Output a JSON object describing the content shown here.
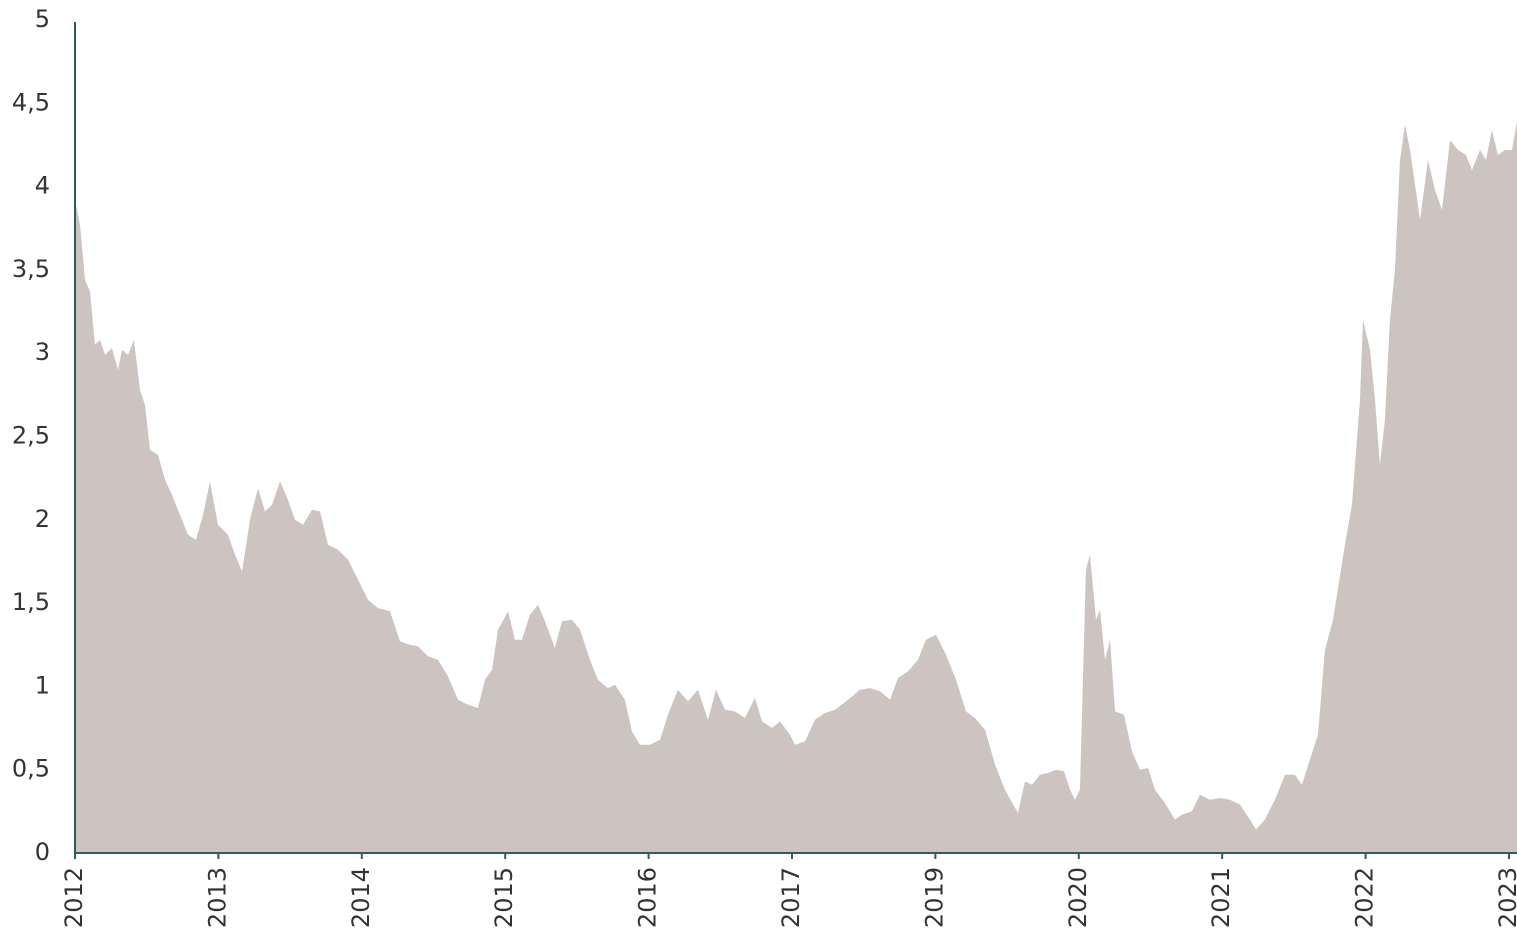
{
  "chart_data": {
    "type": "area",
    "color": "#cdc3c0",
    "axis_color": "#2f5b5e",
    "x": [
      0,
      0.035,
      0.07,
      0.105,
      0.139,
      0.174,
      0.209,
      0.258,
      0.3,
      0.328,
      0.37,
      0.411,
      0.453,
      0.488,
      0.523,
      0.579,
      0.628,
      0.676,
      0.732,
      0.788,
      0.844,
      0.893,
      0.941,
      0.997,
      1.067,
      1.116,
      1.165,
      1.22,
      1.276,
      1.325,
      1.374,
      1.43,
      1.485,
      1.534,
      1.59,
      1.653,
      1.709,
      1.764,
      1.834,
      1.904,
      1.974,
      2.043,
      2.113,
      2.197,
      2.266,
      2.336,
      2.392,
      2.462,
      2.531,
      2.601,
      2.671,
      2.741,
      2.81,
      2.859,
      2.908,
      2.95,
      3.02,
      3.068,
      3.117,
      3.173,
      3.229,
      3.278,
      3.347,
      3.396,
      3.466,
      3.522,
      3.591,
      3.647,
      3.717,
      3.766,
      3.835,
      3.884,
      3.94,
      4.01,
      4.08,
      4.135,
      4.205,
      4.275,
      4.344,
      4.414,
      4.47,
      4.533,
      4.603,
      4.672,
      4.742,
      4.791,
      4.861,
      4.916,
      4.986,
      5.021,
      5.091,
      5.16,
      5.23,
      5.3,
      5.391,
      5.474,
      5.544,
      5.614,
      5.684,
      5.739,
      5.809,
      5.879,
      5.934,
      6.004,
      6.074,
      6.144,
      6.213,
      6.276,
      6.346,
      6.416,
      6.485,
      6.576,
      6.625,
      6.674,
      6.729,
      6.785,
      6.841,
      6.897,
      6.939,
      6.974,
      7.008,
      7.05,
      7.078,
      7.12,
      7.148,
      7.183,
      7.218,
      7.253,
      7.315,
      7.371,
      7.427,
      7.483,
      7.531,
      7.601,
      7.671,
      7.72,
      7.789,
      7.845,
      7.915,
      7.985,
      8.054,
      8.124,
      8.194,
      8.236,
      8.298,
      8.368,
      8.438,
      8.508,
      8.556,
      8.612,
      8.668,
      8.717,
      8.773,
      8.856,
      8.905,
      8.961,
      8.982,
      9.031,
      9.066,
      9.1,
      9.135,
      9.17,
      9.205,
      9.24,
      9.275,
      9.31,
      9.38,
      9.435,
      9.484,
      9.533,
      9.589,
      9.644,
      9.7,
      9.742,
      9.798,
      9.84,
      9.881,
      9.923,
      9.972,
      10.021,
      10.056
    ],
    "values": [
      3.92,
      3.77,
      3.44,
      3.37,
      3.05,
      3.08,
      2.99,
      3.03,
      2.9,
      3.02,
      2.99,
      3.08,
      2.78,
      2.69,
      2.42,
      2.39,
      2.24,
      2.15,
      2.03,
      1.91,
      1.88,
      2.03,
      2.23,
      1.97,
      1.91,
      1.79,
      1.69,
      2.0,
      2.19,
      2.05,
      2.09,
      2.23,
      2.12,
      2.0,
      1.97,
      2.06,
      2.05,
      1.85,
      1.82,
      1.76,
      1.64,
      1.52,
      1.47,
      1.45,
      1.27,
      1.25,
      1.24,
      1.18,
      1.16,
      1.06,
      0.92,
      0.89,
      0.87,
      1.04,
      1.1,
      1.34,
      1.45,
      1.28,
      1.28,
      1.43,
      1.49,
      1.39,
      1.23,
      1.39,
      1.4,
      1.34,
      1.16,
      1.04,
      0.99,
      1.01,
      0.92,
      0.73,
      0.65,
      0.65,
      0.68,
      0.83,
      0.98,
      0.91,
      0.98,
      0.8,
      0.98,
      0.86,
      0.85,
      0.81,
      0.93,
      0.79,
      0.75,
      0.79,
      0.71,
      0.65,
      0.67,
      0.8,
      0.84,
      0.86,
      0.92,
      0.98,
      0.99,
      0.97,
      0.92,
      1.05,
      1.09,
      1.16,
      1.28,
      1.31,
      1.19,
      1.04,
      0.85,
      0.81,
      0.74,
      0.53,
      0.38,
      0.24,
      0.43,
      0.41,
      0.47,
      0.48,
      0.5,
      0.49,
      0.38,
      0.32,
      0.38,
      1.7,
      1.79,
      1.4,
      1.46,
      1.16,
      1.28,
      0.85,
      0.83,
      0.61,
      0.5,
      0.51,
      0.38,
      0.3,
      0.2,
      0.23,
      0.25,
      0.35,
      0.32,
      0.33,
      0.32,
      0.29,
      0.2,
      0.14,
      0.2,
      0.32,
      0.47,
      0.47,
      0.41,
      0.56,
      0.71,
      1.22,
      1.4,
      1.85,
      2.09,
      2.72,
      3.2,
      3.02,
      2.72,
      2.33,
      2.6,
      3.2,
      3.5,
      4.16,
      4.37,
      4.22,
      3.8,
      4.16,
      3.98,
      3.86,
      4.28,
      4.22,
      4.19,
      4.1,
      4.22,
      4.16,
      4.34,
      4.19,
      4.22,
      4.22,
      4.39
    ],
    "xlim": [
      0,
      10.056
    ],
    "xticks": [
      {
        "value": 0,
        "label": "2012"
      },
      {
        "value": 1,
        "label": "2013"
      },
      {
        "value": 2,
        "label": "2014"
      },
      {
        "value": 3,
        "label": "2015"
      },
      {
        "value": 4,
        "label": "2016"
      },
      {
        "value": 5,
        "label": "2017"
      },
      {
        "value": 6,
        "label": "2019"
      },
      {
        "value": 7,
        "label": "2020"
      },
      {
        "value": 8,
        "label": "2021"
      },
      {
        "value": 9,
        "label": "2022"
      },
      {
        "value": 10,
        "label": "2023"
      }
    ],
    "ylim": [
      0,
      5
    ],
    "yticks": [
      0,
      {
        "value": 0.5,
        "label": "0,5"
      },
      1,
      {
        "value": 1.5,
        "label": "1,5"
      },
      2,
      {
        "value": 2.5,
        "label": "2,5"
      },
      3,
      {
        "value": 3.5,
        "label": "3,5"
      },
      4,
      {
        "value": 4.5,
        "label": "4,5"
      },
      5
    ]
  }
}
